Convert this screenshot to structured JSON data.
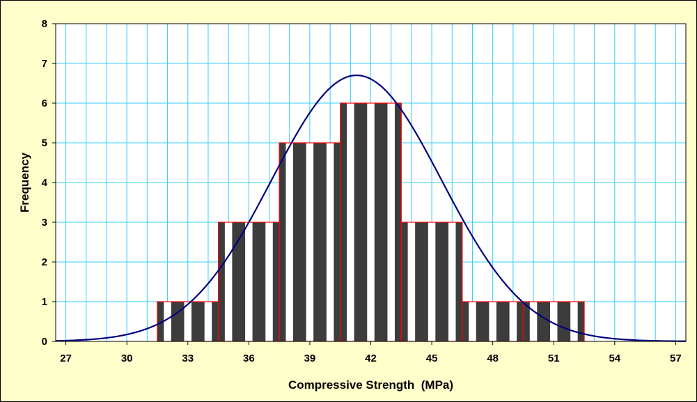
{
  "chart_data": {
    "type": "bar",
    "title": "",
    "xlabel": "Compressive Strength  (MPa)",
    "ylabel": "Frequency",
    "xlim": [
      26.5,
      57.5
    ],
    "ylim": [
      0,
      8
    ],
    "x_ticks": [
      27,
      30,
      33,
      36,
      39,
      42,
      45,
      48,
      51,
      54,
      57
    ],
    "y_ticks": [
      0,
      1,
      2,
      3,
      4,
      5,
      6,
      7,
      8
    ],
    "grid": true,
    "bin_width": 3,
    "bins": [
      {
        "start": 31.5,
        "end": 34.5,
        "frequency": 1
      },
      {
        "start": 34.5,
        "end": 37.5,
        "frequency": 3
      },
      {
        "start": 37.5,
        "end": 40.5,
        "frequency": 5
      },
      {
        "start": 40.5,
        "end": 43.5,
        "frequency": 6
      },
      {
        "start": 43.5,
        "end": 46.5,
        "frequency": 3
      },
      {
        "start": 46.5,
        "end": 49.5,
        "frequency": 1
      },
      {
        "start": 49.5,
        "end": 52.5,
        "frequency": 1
      }
    ],
    "normal_curve": {
      "mean": 41.3,
      "std_dev": 4.18,
      "peak": 6.7
    },
    "colors": {
      "background": "#ffffcc",
      "plot_area": "#ffffff",
      "grid": "#33ccff",
      "bar_fill": "#3c3c3c",
      "bar_stripe": "#ffffff",
      "bar_border": "#ff0000",
      "curve": "#000080"
    }
  }
}
